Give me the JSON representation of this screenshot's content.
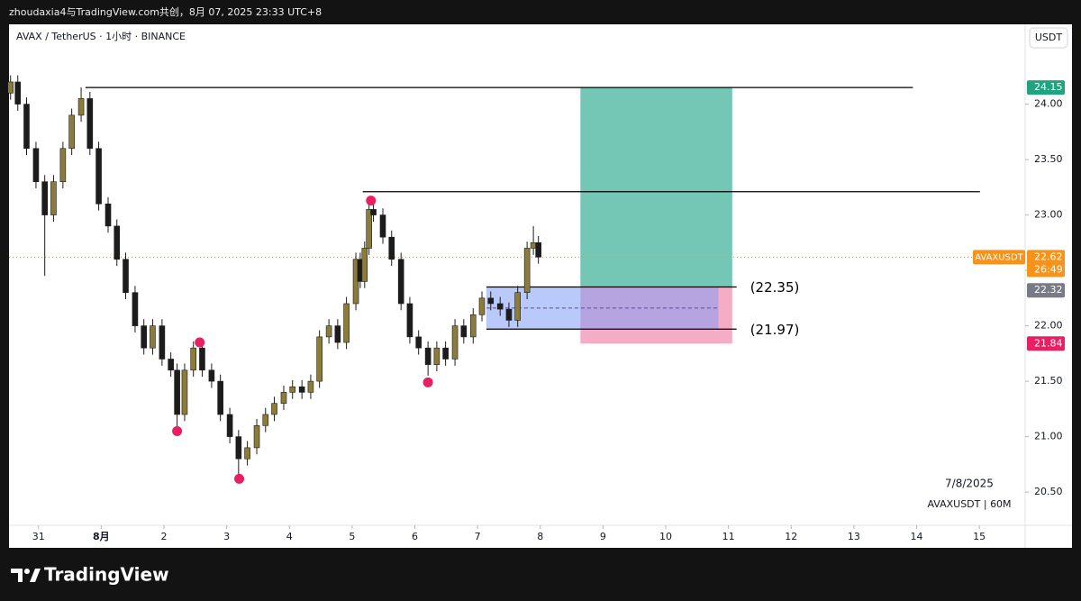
{
  "header": {
    "text": "zhoudaxia4与TradingView.com共创，8月 07, 2025 23:33 UTC+8"
  },
  "footer": {
    "brand": "TradingView"
  },
  "chart_data": {
    "type": "candlestick",
    "title": "AVAX / TetherUS · 1小时 · BINANCE",
    "currency": "USDT",
    "annotations": [
      "7/8/2025",
      "AVAXUSDT | 60M"
    ],
    "up_color": "#8c7c3c",
    "down_color": "#1c1c1c",
    "x": [
      30.555,
      30.67,
      30.81,
      30.96,
      31.1,
      31.24,
      31.39,
      31.53,
      31.68,
      31.82,
      31.96,
      32.11,
      32.25,
      32.39,
      32.54,
      32.68,
      32.82,
      32.97,
      33.11,
      33.21,
      33.33,
      33.47,
      33.61,
      33.76,
      33.9,
      34.05,
      34.19,
      34.33,
      34.48,
      34.62,
      34.76,
      34.91,
      35.05,
      35.2,
      35.34,
      35.48,
      35.63,
      35.77,
      35.91,
      36.06,
      36.13,
      36.2,
      36.27,
      36.34,
      36.49,
      36.63,
      36.78,
      36.92,
      37.06,
      37.21,
      37.35,
      37.49,
      37.64,
      37.78,
      37.93,
      38.07,
      38.21,
      38.36,
      38.5,
      38.64,
      38.79,
      38.89,
      38.97
    ],
    "open": [
      24.1,
      24.2,
      24.0,
      23.6,
      23.3,
      23.0,
      23.3,
      23.6,
      23.9,
      24.05,
      23.6,
      23.1,
      22.9,
      22.6,
      22.3,
      22.0,
      21.8,
      22.0,
      21.7,
      21.6,
      21.2,
      21.6,
      21.8,
      21.6,
      21.5,
      21.2,
      21.0,
      20.8,
      20.9,
      21.1,
      21.2,
      21.3,
      21.4,
      21.45,
      21.4,
      21.5,
      21.9,
      22.0,
      21.85,
      22.2,
      22.6,
      22.4,
      22.7,
      23.05,
      23.0,
      22.8,
      22.6,
      22.2,
      21.9,
      21.8,
      21.65,
      21.8,
      21.7,
      22.0,
      21.9,
      22.1,
      22.25,
      22.2,
      22.15,
      22.05,
      22.3,
      22.7,
      22.75
    ],
    "high": [
      24.26,
      24.26,
      24.06,
      23.66,
      23.36,
      23.36,
      23.66,
      23.96,
      24.15,
      24.11,
      23.66,
      23.16,
      22.96,
      22.66,
      22.36,
      22.06,
      22.06,
      22.06,
      21.76,
      21.66,
      21.66,
      21.86,
      21.86,
      21.66,
      21.56,
      21.26,
      21.06,
      20.96,
      21.16,
      21.26,
      21.36,
      21.46,
      21.51,
      21.51,
      21.56,
      21.96,
      22.06,
      22.06,
      22.26,
      22.66,
      22.66,
      22.76,
      23.15,
      23.11,
      23.06,
      22.86,
      22.66,
      22.26,
      21.96,
      21.86,
      21.86,
      21.86,
      22.06,
      22.06,
      22.16,
      22.31,
      22.31,
      22.26,
      22.21,
      22.36,
      22.76,
      22.9,
      22.81
    ],
    "low": [
      24.04,
      23.94,
      23.54,
      23.24,
      22.45,
      22.94,
      23.24,
      23.54,
      23.84,
      23.54,
      23.04,
      22.84,
      22.54,
      22.24,
      21.94,
      21.74,
      21.74,
      21.64,
      21.54,
      21.05,
      21.14,
      21.54,
      21.54,
      21.44,
      21.14,
      20.94,
      20.58,
      20.74,
      20.84,
      21.04,
      21.14,
      21.24,
      21.34,
      21.34,
      21.34,
      21.44,
      21.84,
      21.79,
      21.79,
      22.14,
      22.34,
      22.34,
      22.64,
      22.94,
      22.74,
      22.54,
      22.14,
      21.84,
      21.74,
      21.55,
      21.59,
      21.64,
      21.64,
      21.84,
      21.84,
      22.04,
      22.14,
      22.09,
      21.99,
      21.99,
      22.24,
      22.64,
      22.56
    ],
    "close": [
      24.2,
      24.0,
      23.6,
      23.3,
      23.0,
      23.3,
      23.6,
      23.9,
      24.05,
      23.6,
      23.1,
      22.9,
      22.6,
      22.3,
      22.0,
      21.8,
      22.0,
      21.7,
      21.6,
      21.2,
      21.6,
      21.8,
      21.6,
      21.5,
      21.2,
      21.0,
      20.8,
      20.9,
      21.1,
      21.2,
      21.3,
      21.4,
      21.45,
      21.4,
      21.5,
      21.9,
      22.0,
      21.85,
      22.2,
      22.6,
      22.4,
      22.7,
      23.05,
      23.0,
      22.8,
      22.6,
      22.2,
      21.9,
      21.8,
      21.65,
      21.8,
      21.7,
      22.0,
      21.9,
      22.1,
      22.25,
      22.2,
      22.15,
      22.05,
      22.3,
      22.7,
      22.75,
      22.62
    ],
    "xlim": [
      30.53,
      46.73
    ],
    "ylim": [
      20.2,
      24.72
    ],
    "xticks": [
      31,
      {
        "value": 32,
        "label": "8月"
      },
      {
        "value": 33,
        "label": "2"
      },
      {
        "value": 34,
        "label": "3"
      },
      {
        "value": 35,
        "label": "4"
      },
      {
        "value": 36,
        "label": "5"
      },
      {
        "value": 37,
        "label": "6"
      },
      {
        "value": 38,
        "label": "7"
      },
      {
        "value": 39,
        "label": "8"
      },
      {
        "value": 40,
        "label": "9"
      },
      {
        "value": 41,
        "label": "10"
      },
      {
        "value": 42,
        "label": "11"
      },
      {
        "value": 43,
        "label": "12"
      },
      {
        "value": 44,
        "label": "13"
      },
      {
        "value": 45,
        "label": "14"
      },
      {
        "value": 46,
        "label": "15"
      }
    ],
    "yticks": [
      {
        "value": 20.5,
        "label": "20.50"
      },
      {
        "value": 21,
        "label": "21.00"
      },
      {
        "value": 21.5,
        "label": "21.50"
      },
      {
        "value": 22,
        "label": "22.00"
      },
      {
        "value": 22.5,
        "label": "22.50"
      },
      {
        "value": 23,
        "label": "23.00"
      },
      {
        "value": 23.5,
        "label": "23.50"
      },
      {
        "value": 24,
        "label": "24.00"
      }
    ],
    "zones": [
      {
        "x": [
          39.64,
          42.06
        ],
        "y": [
          22.35,
          24.15
        ],
        "color": "#6cc4b0"
      },
      {
        "x": [
          39.64,
          42.06
        ],
        "y": [
          21.84,
          22.35
        ],
        "color": "#f4a9c3"
      },
      {
        "x": [
          38.14,
          41.84
        ],
        "y": [
          21.97,
          22.35
        ],
        "color": "#7f9cf5"
      }
    ],
    "lines": [
      {
        "y": 24.15,
        "x": [
          31.75,
          44.94
        ]
      },
      {
        "y": 23.21,
        "x": [
          36.17,
          46.01
        ]
      },
      {
        "y": 22.35,
        "x": [
          38.14,
          42.13
        ],
        "label": "(22.35)"
      },
      {
        "y": 21.97,
        "x": [
          38.14,
          42.13
        ],
        "label": "(21.97)"
      }
    ],
    "markers": {
      "x": [
        33.21,
        33.57,
        34.2,
        36.3,
        37.21
      ],
      "y": [
        21.05,
        21.85,
        20.62,
        23.13,
        21.49
      ],
      "color": "#e91e63"
    },
    "price_labels": [
      {
        "value": 24.15,
        "color": "#22a37f"
      },
      {
        "value": 22.62,
        "color": "#f7931a"
      },
      {
        "value": 22.32,
        "color": "#787b86"
      },
      {
        "value": 21.84,
        "color": "#e91e63"
      }
    ],
    "symbol_tag": "AVAXUSDT",
    "countdown": "26:49"
  }
}
